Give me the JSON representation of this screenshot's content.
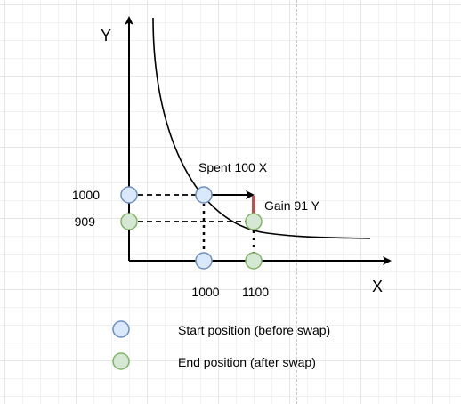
{
  "axes": {
    "y_title": "Y",
    "x_title": "X"
  },
  "ticks": {
    "y": [
      "1000",
      "909"
    ],
    "x": [
      "1000",
      "1100"
    ]
  },
  "annotations": {
    "spent": "Spent 100 X",
    "gain": "Gain 91 Y"
  },
  "legend": {
    "start": "Start position (before swap)",
    "end": "End position (after swap)"
  },
  "colors": {
    "start_fill": "#dae8fc",
    "start_stroke": "#6c8ebf",
    "end_fill": "#d5e8d4",
    "end_stroke": "#82b366",
    "gain_bar": "#b85450"
  }
}
